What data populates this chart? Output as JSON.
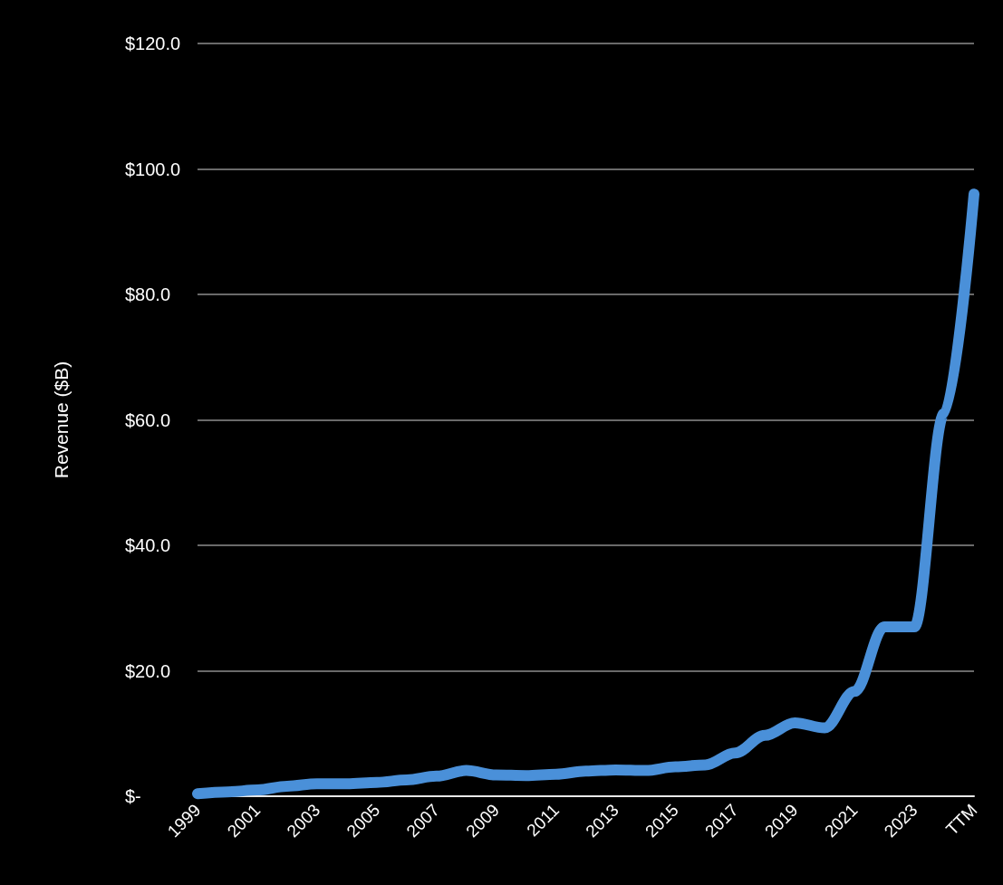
{
  "chart_data": {
    "type": "line",
    "ylabel": "Revenue ($B)",
    "categories": [
      "1999",
      null,
      "2001",
      null,
      "2003",
      null,
      "2005",
      null,
      "2007",
      null,
      "2009",
      null,
      "2011",
      null,
      "2013",
      null,
      "2015",
      null,
      "2017",
      null,
      "2019",
      null,
      "2021",
      null,
      "2023",
      null,
      "TTM"
    ],
    "series": [
      {
        "color": "#4a90d9",
        "values": [
          0.4,
          0.7,
          1.0,
          1.6,
          2.0,
          2.0,
          2.2,
          2.6,
          3.2,
          4.1,
          3.4,
          3.3,
          3.5,
          4.0,
          4.2,
          4.1,
          4.7,
          5.0,
          6.9,
          9.7,
          11.7,
          10.9,
          16.7,
          27.0,
          27.0,
          61.0,
          96.0
        ]
      }
    ],
    "ylim": [
      0,
      120
    ],
    "yticks": [
      {
        "value": 0,
        "label": "$-"
      },
      {
        "value": 20,
        "label": "$20.0"
      },
      {
        "value": 40,
        "label": "$40.0"
      },
      {
        "value": 60,
        "label": "$60.0"
      },
      {
        "value": 80,
        "label": "$80.0"
      },
      {
        "value": 100,
        "label": "$100.0"
      },
      {
        "value": 120,
        "label": "$120.0"
      }
    ],
    "grid": "y",
    "line_style": "solid"
  }
}
